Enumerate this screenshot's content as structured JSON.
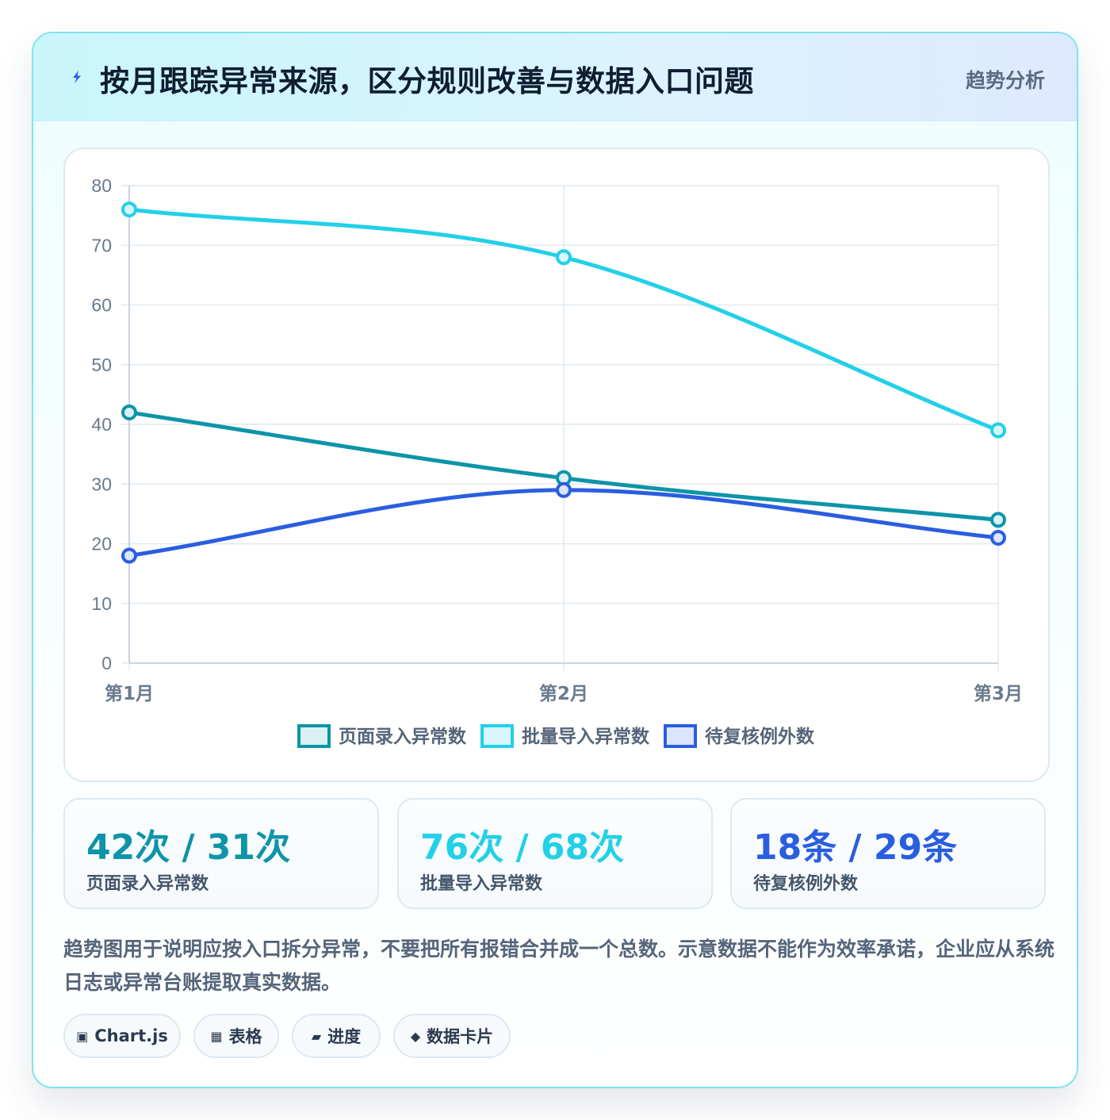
{
  "header": {
    "title": "按月跟踪异常来源，区分规则改善与数据入口问题",
    "tag": "趋势分析",
    "icon": "lightning-icon"
  },
  "chart_data": {
    "type": "line",
    "categories": [
      "第1月",
      "第2月",
      "第3月"
    ],
    "series": [
      {
        "name": "页面录入异常数",
        "values": [
          42,
          31,
          24
        ],
        "color": "#0e94a8",
        "fill": "#d9f1f5"
      },
      {
        "name": "批量导入异常数",
        "values": [
          76,
          68,
          39
        ],
        "color": "#22d0e8",
        "fill": "#d8f6fb"
      },
      {
        "name": "待复核例外数",
        "values": [
          18,
          29,
          21
        ],
        "color": "#2a5ee0",
        "fill": "#dbe5fb"
      }
    ],
    "ylim": [
      0,
      80
    ],
    "yticks": [
      0,
      10,
      20,
      30,
      40,
      50,
      60,
      70,
      80
    ],
    "grid": true,
    "legend": "bottom",
    "smooth": true
  },
  "stats": [
    {
      "value": "42次 / 31次",
      "label": "页面录入异常数",
      "color": "#0e94a8"
    },
    {
      "value": "76次 / 68次",
      "label": "批量导入异常数",
      "color": "#22d0e8"
    },
    {
      "value": "18条 / 29条",
      "label": "待复核例外数",
      "color": "#2a5ee0"
    }
  ],
  "note": "趋势图用于说明应按入口拆分异常，不要把所有报错合并成一个总数。示意数据不能作为效率承诺，企业应从系统日志或异常台账提取真实数据。",
  "tags": [
    {
      "icon": "▣",
      "label": "Chart.js"
    },
    {
      "icon": "▦",
      "label": "表格"
    },
    {
      "icon": "▰",
      "label": "进度"
    },
    {
      "icon": "◆",
      "label": "数据卡片"
    }
  ]
}
